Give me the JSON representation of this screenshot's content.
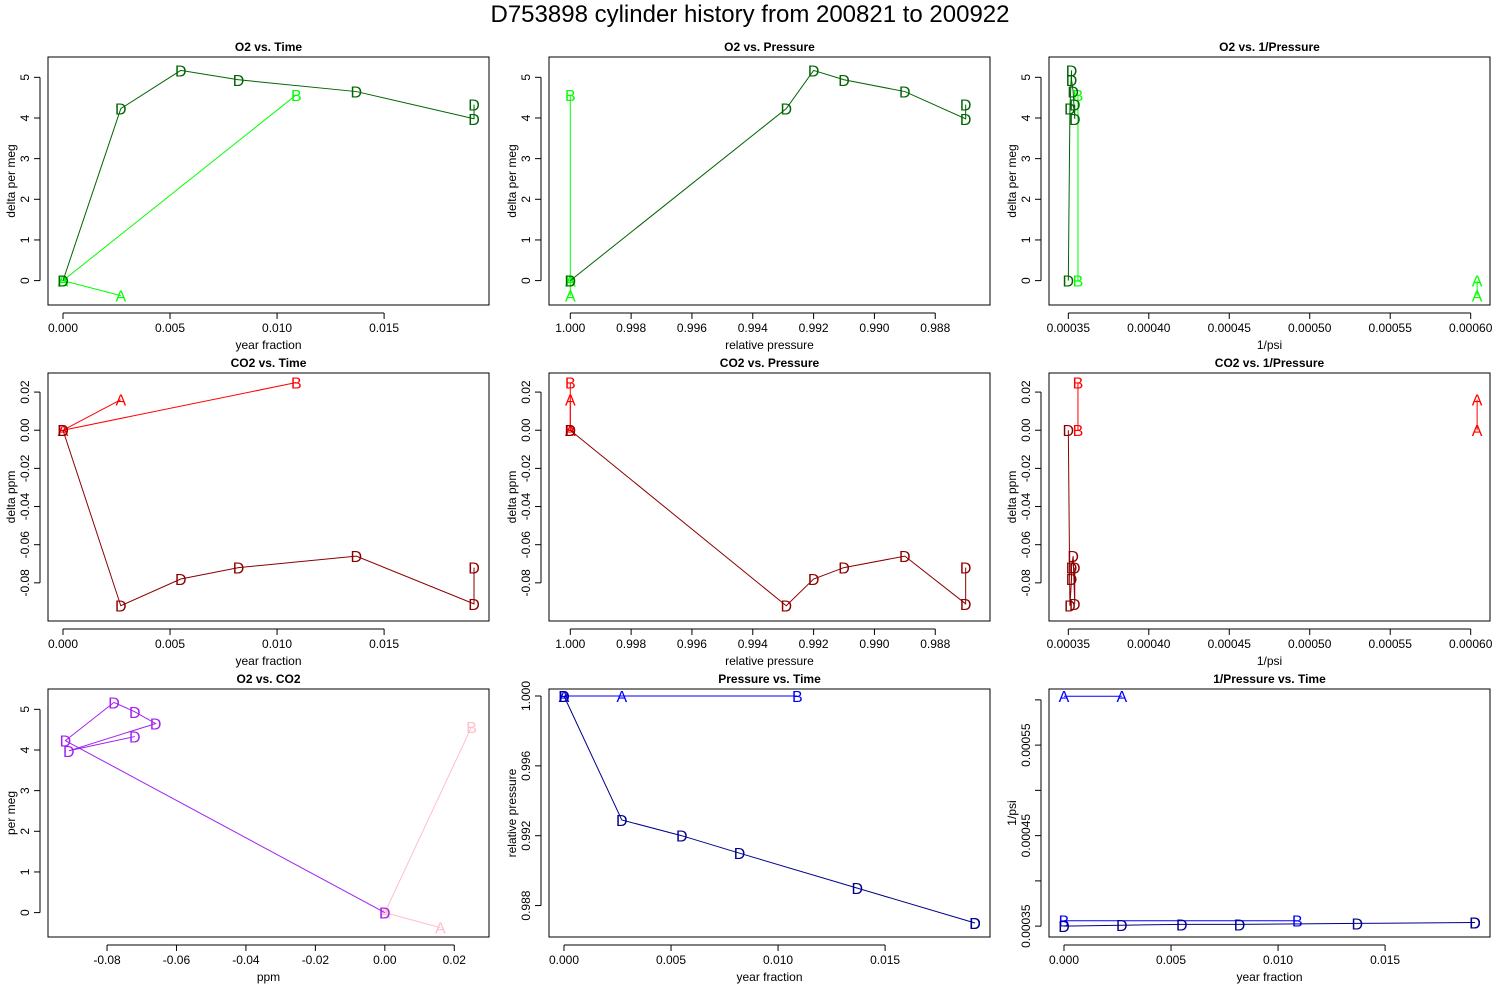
{
  "page": {
    "title": "D753898   cylinder history from  200821  to  200922"
  },
  "chart_data": [
    {
      "type": "line",
      "title": "O2 vs. Time",
      "xlabel": "year fraction",
      "ylabel": "delta per meg",
      "xlim": [
        -0.0007,
        0.0199
      ],
      "ylim": [
        -0.6,
        5.5
      ],
      "xticks": [
        0,
        0.005,
        0.01,
        0.015
      ],
      "xtick_labels": [
        "0.000",
        "0.005",
        "0.010",
        "0.015"
      ],
      "yticks": [
        0,
        1,
        2,
        3,
        4,
        5
      ],
      "ytick_labels": [
        "0",
        "1",
        "2",
        "3",
        "4",
        "5"
      ],
      "series": [
        {
          "color": "#00FF00",
          "points": [
            [
              0,
              0
            ],
            [
              0.0027,
              -0.37
            ]
          ],
          "labels": [
            "A",
            "A"
          ]
        },
        {
          "color": "#00FF00",
          "points": [
            [
              0,
              0
            ],
            [
              0.0109,
              4.57
            ]
          ],
          "labels": [
            "B",
            "B"
          ]
        },
        {
          "color": "#006400",
          "points": [
            [
              0,
              0
            ],
            [
              0.0027,
              4.23
            ],
            [
              0.0055,
              5.17
            ],
            [
              0.0082,
              4.94
            ],
            [
              0.0137,
              4.65
            ],
            [
              0.0192,
              3.98
            ],
            [
              0.0192,
              4.33
            ]
          ],
          "labels": [
            "D",
            "D",
            "D",
            "D",
            "D",
            "D",
            "D"
          ]
        }
      ]
    },
    {
      "type": "line",
      "title": "O2 vs. Pressure",
      "xlabel": "relative pressure",
      "ylabel": "delta per meg",
      "xlim": [
        1.0007,
        0.9862
      ],
      "ylim": [
        -0.6,
        5.5
      ],
      "xticks": [
        1.0,
        0.998,
        0.996,
        0.994,
        0.992,
        0.99,
        0.988
      ],
      "xtick_labels": [
        "1.000",
        "0.998",
        "0.996",
        "0.994",
        "0.992",
        "0.990",
        "0.988"
      ],
      "yticks": [
        0,
        1,
        2,
        3,
        4,
        5
      ],
      "ytick_labels": [
        "0",
        "1",
        "2",
        "3",
        "4",
        "5"
      ],
      "series": [
        {
          "color": "#00FF00",
          "points": [
            [
              1.0,
              0
            ],
            [
              1.0,
              -0.37
            ]
          ],
          "labels": [
            "A",
            "A"
          ]
        },
        {
          "color": "#00FF00",
          "points": [
            [
              1.0,
              0
            ],
            [
              1.0,
              4.57
            ]
          ],
          "labels": [
            "B",
            "B"
          ]
        },
        {
          "color": "#006400",
          "points": [
            [
              1.0,
              0
            ],
            [
              0.9929,
              4.23
            ],
            [
              0.992,
              5.17
            ],
            [
              0.991,
              4.94
            ],
            [
              0.989,
              4.65
            ],
            [
              0.987,
              3.98
            ],
            [
              0.987,
              4.33
            ]
          ],
          "labels": [
            "D",
            "D",
            "D",
            "D",
            "D",
            "D",
            "D"
          ]
        }
      ]
    },
    {
      "type": "line",
      "title": "O2 vs. 1/Pressure",
      "xlabel": "1/psi",
      "ylabel": "delta per meg",
      "xlim": [
        0.000338,
        0.000612
      ],
      "ylim": [
        -0.6,
        5.5
      ],
      "xticks": [
        0.00035,
        0.0004,
        0.00045,
        0.0005,
        0.00055,
        0.0006
      ],
      "xtick_labels": [
        "0.00035",
        "0.00040",
        "0.00045",
        "0.00050",
        "0.00055",
        "0.00060"
      ],
      "yticks": [
        0,
        1,
        2,
        3,
        4,
        5
      ],
      "ytick_labels": [
        "0",
        "1",
        "2",
        "3",
        "4",
        "5"
      ],
      "series": [
        {
          "color": "#00FF00",
          "points": [
            [
              0.000604,
              0
            ],
            [
              0.000604,
              -0.37
            ]
          ],
          "labels": [
            "A",
            "A"
          ]
        },
        {
          "color": "#00FF00",
          "points": [
            [
              0.000356,
              0
            ],
            [
              0.000356,
              4.57
            ]
          ],
          "labels": [
            "B",
            "B"
          ]
        },
        {
          "color": "#006400",
          "points": [
            [
              0.00035,
              0
            ],
            [
              0.000351,
              4.23
            ],
            [
              0.000352,
              5.17
            ],
            [
              0.000352,
              4.94
            ],
            [
              0.000353,
              4.65
            ],
            [
              0.000354,
              3.98
            ],
            [
              0.000354,
              4.33
            ]
          ],
          "labels": [
            "D",
            "D",
            "D",
            "D",
            "D",
            "D",
            "D"
          ]
        }
      ]
    },
    {
      "type": "line",
      "title": "CO2 vs. Time",
      "xlabel": "year fraction",
      "ylabel": "delta ppm",
      "xlim": [
        -0.0007,
        0.0199
      ],
      "ylim": [
        -0.1,
        0.03
      ],
      "xticks": [
        0,
        0.005,
        0.01,
        0.015
      ],
      "xtick_labels": [
        "0.000",
        "0.005",
        "0.010",
        "0.015"
      ],
      "yticks": [
        -0.08,
        -0.06,
        -0.04,
        -0.02,
        0,
        0.02
      ],
      "ytick_labels": [
        "-0.08",
        "-0.06",
        "-0.04",
        "-0.02",
        "0.00",
        "0.02"
      ],
      "series": [
        {
          "color": "#FF0000",
          "points": [
            [
              0,
              0
            ],
            [
              0.0027,
              0.016
            ]
          ],
          "labels": [
            "A",
            "A"
          ]
        },
        {
          "color": "#FF0000",
          "points": [
            [
              0,
              0
            ],
            [
              0.0109,
              0.025
            ]
          ],
          "labels": [
            "B",
            "B"
          ]
        },
        {
          "color": "#8B0000",
          "points": [
            [
              0,
              0
            ],
            [
              0.0027,
              -0.092
            ],
            [
              0.0055,
              -0.078
            ],
            [
              0.0082,
              -0.072
            ],
            [
              0.0137,
              -0.066
            ],
            [
              0.0192,
              -0.091
            ],
            [
              0.0192,
              -0.072
            ]
          ],
          "labels": [
            "D",
            "D",
            "D",
            "D",
            "D",
            "D",
            "D"
          ]
        }
      ]
    },
    {
      "type": "line",
      "title": "CO2 vs. Pressure",
      "xlabel": "relative pressure",
      "ylabel": "delta ppm",
      "xlim": [
        1.0007,
        0.9862
      ],
      "ylim": [
        -0.1,
        0.03
      ],
      "xticks": [
        1.0,
        0.998,
        0.996,
        0.994,
        0.992,
        0.99,
        0.988
      ],
      "xtick_labels": [
        "1.000",
        "0.998",
        "0.996",
        "0.994",
        "0.992",
        "0.990",
        "0.988"
      ],
      "yticks": [
        -0.08,
        -0.06,
        -0.04,
        -0.02,
        0,
        0.02
      ],
      "ytick_labels": [
        "-0.08",
        "-0.06",
        "-0.04",
        "-0.02",
        "0.00",
        "0.02"
      ],
      "series": [
        {
          "color": "#FF0000",
          "points": [
            [
              1.0,
              0
            ],
            [
              1.0,
              0.016
            ]
          ],
          "labels": [
            "A",
            "A"
          ]
        },
        {
          "color": "#FF0000",
          "points": [
            [
              1.0,
              0
            ],
            [
              1.0,
              0.025
            ]
          ],
          "labels": [
            "B",
            "B"
          ]
        },
        {
          "color": "#8B0000",
          "points": [
            [
              1.0,
              0
            ],
            [
              0.9929,
              -0.092
            ],
            [
              0.992,
              -0.078
            ],
            [
              0.991,
              -0.072
            ],
            [
              0.989,
              -0.066
            ],
            [
              0.987,
              -0.091
            ],
            [
              0.987,
              -0.072
            ]
          ],
          "labels": [
            "D",
            "D",
            "D",
            "D",
            "D",
            "D",
            "D"
          ]
        }
      ]
    },
    {
      "type": "line",
      "title": "CO2 vs. 1/Pressure",
      "xlabel": "1/psi",
      "ylabel": "delta ppm",
      "xlim": [
        0.000338,
        0.000612
      ],
      "ylim": [
        -0.1,
        0.03
      ],
      "xticks": [
        0.00035,
        0.0004,
        0.00045,
        0.0005,
        0.00055,
        0.0006
      ],
      "xtick_labels": [
        "0.00035",
        "0.00040",
        "0.00045",
        "0.00050",
        "0.00055",
        "0.00060"
      ],
      "yticks": [
        -0.08,
        -0.06,
        -0.04,
        -0.02,
        0,
        0.02
      ],
      "ytick_labels": [
        "-0.08",
        "-0.06",
        "-0.04",
        "-0.02",
        "0.00",
        "0.02"
      ],
      "series": [
        {
          "color": "#FF0000",
          "points": [
            [
              0.000604,
              0
            ],
            [
              0.000604,
              0.016
            ]
          ],
          "labels": [
            "A",
            "A"
          ]
        },
        {
          "color": "#FF0000",
          "points": [
            [
              0.000356,
              0
            ],
            [
              0.000356,
              0.025
            ]
          ],
          "labels": [
            "B",
            "B"
          ]
        },
        {
          "color": "#8B0000",
          "points": [
            [
              0.00035,
              0
            ],
            [
              0.000351,
              -0.092
            ],
            [
              0.000352,
              -0.078
            ],
            [
              0.000352,
              -0.072
            ],
            [
              0.000353,
              -0.066
            ],
            [
              0.000354,
              -0.091
            ],
            [
              0.000354,
              -0.072
            ]
          ],
          "labels": [
            "D",
            "D",
            "D",
            "D",
            "D",
            "D",
            "D"
          ]
        }
      ]
    },
    {
      "type": "line",
      "title": "O2 vs. CO2",
      "xlabel": "ppm",
      "ylabel": "per meg",
      "xlim": [
        -0.097,
        0.03
      ],
      "ylim": [
        -0.6,
        5.5
      ],
      "xticks": [
        -0.08,
        -0.06,
        -0.04,
        -0.02,
        0,
        0.02
      ],
      "xtick_labels": [
        "-0.08",
        "-0.06",
        "-0.04",
        "-0.02",
        "0.00",
        "0.02"
      ],
      "yticks": [
        0,
        1,
        2,
        3,
        4,
        5
      ],
      "ytick_labels": [
        "0",
        "1",
        "2",
        "3",
        "4",
        "5"
      ],
      "series": [
        {
          "color": "#FFC0CB",
          "points": [
            [
              0,
              0
            ],
            [
              0.016,
              -0.37
            ]
          ],
          "labels": [
            "A",
            "A"
          ]
        },
        {
          "color": "#FFC0CB",
          "points": [
            [
              0,
              0
            ],
            [
              0.025,
              4.57
            ]
          ],
          "labels": [
            "B",
            "B"
          ]
        },
        {
          "color": "#A020F0",
          "points": [
            [
              0,
              0
            ],
            [
              -0.092,
              4.23
            ],
            [
              -0.078,
              5.17
            ],
            [
              -0.072,
              4.94
            ],
            [
              -0.066,
              4.65
            ],
            [
              -0.091,
              3.98
            ],
            [
              -0.072,
              4.33
            ]
          ],
          "labels": [
            "D",
            "D",
            "D",
            "D",
            "D",
            "D",
            "D"
          ]
        }
      ]
    },
    {
      "type": "line",
      "title": "Pressure vs. Time",
      "xlabel": "year fraction",
      "ylabel": "relative pressure",
      "xlim": [
        -0.0007,
        0.0199
      ],
      "ylim": [
        0.9862,
        1.0004
      ],
      "xticks": [
        0,
        0.005,
        0.01,
        0.015
      ],
      "xtick_labels": [
        "0.000",
        "0.005",
        "0.010",
        "0.015"
      ],
      "yticks": [
        0.988,
        0.992,
        0.996,
        1.0
      ],
      "ytick_labels": [
        "0.988",
        "0.992",
        "0.996",
        "1.000"
      ],
      "series": [
        {
          "color": "#0000FF",
          "points": [
            [
              0,
              1.0
            ],
            [
              0.0027,
              1.0
            ]
          ],
          "labels": [
            "A",
            "A"
          ]
        },
        {
          "color": "#0000FF",
          "points": [
            [
              0,
              1.0
            ],
            [
              0.0109,
              1.0
            ]
          ],
          "labels": [
            "B",
            "B"
          ]
        },
        {
          "color": "#00008B",
          "points": [
            [
              0,
              1.0
            ],
            [
              0.0027,
              0.9929
            ],
            [
              0.0055,
              0.992
            ],
            [
              0.0082,
              0.991
            ],
            [
              0.0137,
              0.989
            ],
            [
              0.0192,
              0.987
            ],
            [
              0.0192,
              0.987
            ]
          ],
          "labels": [
            "D",
            "D",
            "D",
            "D",
            "D",
            "D",
            "D"
          ]
        }
      ]
    },
    {
      "type": "line",
      "title": "1/Pressure vs. Time",
      "xlabel": "year fraction",
      "ylabel": "1/psi",
      "xlim": [
        -0.0007,
        0.0199
      ],
      "ylim": [
        0.000338,
        0.000612
      ],
      "xticks": [
        0,
        0.005,
        0.01,
        0.015
      ],
      "xtick_labels": [
        "0.000",
        "0.005",
        "0.010",
        "0.015"
      ],
      "yticks": [
        0.00035,
        0.0004,
        0.00045,
        0.0005,
        0.00055,
        0.0006
      ],
      "ytick_labels": [
        "0.00035",
        "",
        "0.00045",
        "",
        "0.00055",
        ""
      ],
      "series": [
        {
          "color": "#0000FF",
          "points": [
            [
              0,
              0.000604
            ],
            [
              0.0027,
              0.000604
            ]
          ],
          "labels": [
            "A",
            "A"
          ]
        },
        {
          "color": "#0000FF",
          "points": [
            [
              0,
              0.000356
            ],
            [
              0.0109,
              0.000356
            ]
          ],
          "labels": [
            "B",
            "B"
          ]
        },
        {
          "color": "#00008B",
          "points": [
            [
              0,
              0.00035
            ],
            [
              0.0027,
              0.000351
            ],
            [
              0.0055,
              0.000352
            ],
            [
              0.0082,
              0.000352
            ],
            [
              0.0137,
              0.000353
            ],
            [
              0.0192,
              0.000354
            ],
            [
              0.0192,
              0.000354
            ]
          ],
          "labels": [
            "D",
            "D",
            "D",
            "D",
            "D",
            "D",
            "D"
          ]
        }
      ]
    }
  ]
}
